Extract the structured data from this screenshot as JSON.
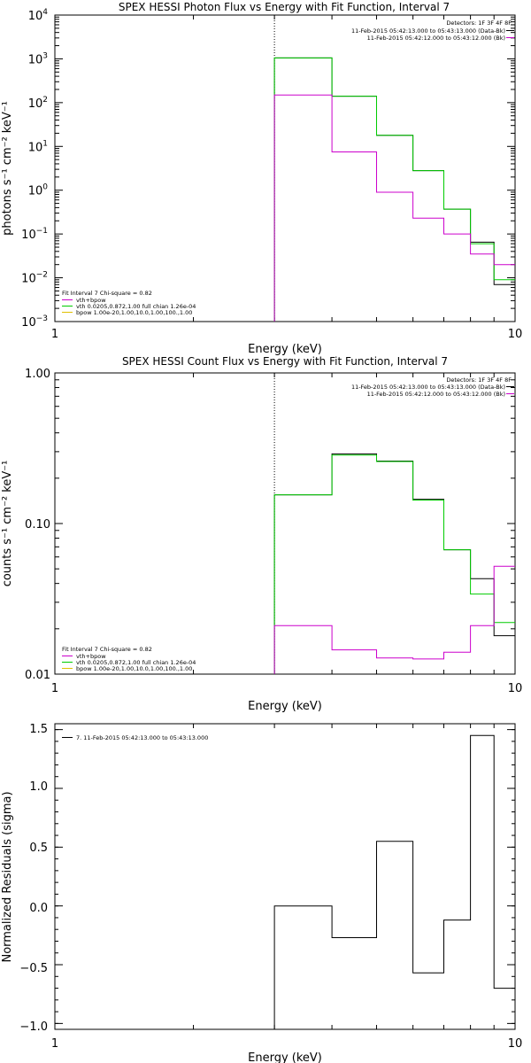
{
  "colors": {
    "data": "#000000",
    "fit_total": "#cc00cc",
    "vth": "#00cc00",
    "bpow": "#e0c000",
    "background": "#cc00cc"
  },
  "chart_data": [
    {
      "type": "line",
      "step": true,
      "log_x": true,
      "log_y": true,
      "title": "SPEX HESSI Photon Flux vs Energy with Fit Function, Interval 7",
      "xlabel": "Energy (keV)",
      "ylabel": "photons s⁻¹ cm⁻² keV⁻¹",
      "xlim": [
        1,
        10
      ],
      "ylim": [
        0.001,
        10000
      ],
      "x_ticks": [
        "1",
        "10"
      ],
      "y_ticks": [
        {
          "base": "10",
          "exp": "4"
        },
        {
          "base": "10",
          "exp": "3"
        },
        {
          "base": "10",
          "exp": "2"
        },
        {
          "base": "10",
          "exp": "1"
        },
        {
          "base": "10",
          "exp": "0"
        },
        {
          "base": "10",
          "exp": "−1"
        },
        {
          "base": "10",
          "exp": "−2"
        },
        {
          "base": "10",
          "exp": "−3"
        }
      ],
      "fit_start_keV": 3,
      "legend_top_right": [
        "Detectors: 1F 3F 4F 8F",
        "11-Feb-2015 05:42:13.000 to 05:43:13.000 (Data-Bk)",
        "11-Feb-2015 05:42:12.000 to 05:43:12.000 (Bk)"
      ],
      "legend_bottom_left": [
        "Fit Interval  7    Chi-square = 0.82",
        "vth+bpow",
        "vth 0.0205,0.872,1.00  full chian 1.26e-04",
        "bpow 1.00e-20,1.00,10.0,1.00,100.,1.00"
      ],
      "bin_edges_keV": [
        3,
        4,
        5,
        6,
        7,
        8,
        9,
        10
      ],
      "series": [
        {
          "name": "Data-Bk",
          "color_key": "data",
          "values": [
            1050,
            140,
            18,
            2.8,
            0.37,
            0.065,
            0.007
          ]
        },
        {
          "name": "vth",
          "color_key": "vth",
          "values": [
            1050,
            140,
            18,
            2.8,
            0.37,
            0.06,
            0.009
          ]
        },
        {
          "name": "Bk",
          "color_key": "background",
          "values": [
            150,
            7.5,
            0.9,
            0.23,
            0.1,
            0.035,
            0.02
          ]
        }
      ]
    },
    {
      "type": "line",
      "step": true,
      "log_x": true,
      "log_y": true,
      "title": "SPEX HESSI Count Flux vs Energy with Fit Function, Interval 7",
      "xlabel": "Energy (keV)",
      "ylabel": "counts s⁻¹ cm⁻² keV⁻¹",
      "xlim": [
        1,
        10
      ],
      "ylim": [
        0.01,
        1
      ],
      "x_ticks": [
        "1",
        "10"
      ],
      "y_ticks": [
        "1.00",
        "0.10",
        "0.01"
      ],
      "fit_start_keV": 3,
      "legend_top_right": [
        "Detectors: 1F 3F 4F 8F",
        "11-Feb-2015 05:42:13.000 to 05:43:13.000 (Data-Bk)",
        "11-Feb-2015 05:42:12.000 to 05:43:12.000 (Bk)"
      ],
      "legend_bottom_left": [
        "Fit Interval  7    Chi-square = 0.82",
        "vth+bpow",
        "vth 0.0205,0.872,1.00  full chian 1.26e-04",
        "bpow 1.00e-20,1.00,10.0,1.00,100.,1.00"
      ],
      "bin_edges_keV": [
        3,
        4,
        5,
        6,
        7,
        8,
        9,
        10
      ],
      "series": [
        {
          "name": "Data-Bk",
          "color_key": "data",
          "values": [
            0.155,
            0.29,
            0.26,
            0.145,
            0.067,
            0.043,
            0.018
          ]
        },
        {
          "name": "vth",
          "color_key": "vth",
          "values": [
            0.155,
            0.285,
            0.258,
            0.143,
            0.067,
            0.034,
            0.022
          ]
        },
        {
          "name": "Bk",
          "color_key": "background",
          "values": [
            0.021,
            0.0145,
            0.0128,
            0.0126,
            0.014,
            0.021,
            0.052
          ]
        }
      ]
    },
    {
      "type": "line",
      "step": true,
      "log_x": true,
      "log_y": false,
      "title": "",
      "xlabel": "Energy (keV)",
      "ylabel": "Normalized Residuals (sigma)",
      "xlim": [
        1,
        10
      ],
      "ylim": [
        -1.05,
        1.55
      ],
      "x_ticks": [
        "1",
        "10"
      ],
      "y_ticks": [
        "1.5",
        "1.0",
        "0.5",
        "0.0",
        "−0.5",
        "−1.0"
      ],
      "legend_top_left": [
        "7. 11-Feb-2015 05:42:13.000 to 05:43:13.000"
      ],
      "bin_edges_keV": [
        3,
        4,
        5,
        6,
        7,
        8,
        9,
        10
      ],
      "series": [
        {
          "name": "",
          "color_key": "data",
          "values": [
            0.0,
            -0.27,
            0.55,
            -0.57,
            -0.12,
            1.45,
            -0.7
          ]
        }
      ]
    }
  ]
}
